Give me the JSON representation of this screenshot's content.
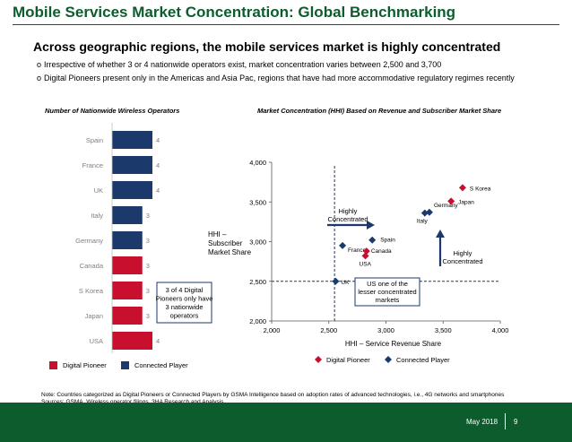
{
  "title": "Mobile Services Market Concentration: Global Benchmarking",
  "subtitle": "Across geographic regions, the mobile services market is highly concentrated",
  "bullets": [
    "Irrespective of whether 3 or 4 nationwide operators exist, market concentration varies between 2,500 and 3,700",
    "Digital Pioneers present only in the Americas and Asia Pac, regions that have had more accommodative regulatory regimes recently"
  ],
  "bullet_marker": "o",
  "colors": {
    "digital_pioneer": "#c8102e",
    "connected_player": "#1b3a6b",
    "brand_green": "#0d5c2e"
  },
  "chart_data": [
    {
      "type": "bar",
      "orientation": "horizontal",
      "title": "Number of Nationwide Wireless Operators",
      "categories": [
        "Spain",
        "France",
        "UK",
        "Italy",
        "Germany",
        "Canada",
        "S Korea",
        "Japan",
        "USA"
      ],
      "values": [
        4,
        4,
        4,
        3,
        3,
        3,
        3,
        3,
        4
      ],
      "groups": [
        "Connected Player",
        "Connected Player",
        "Connected Player",
        "Connected Player",
        "Connected Player",
        "Digital Pioneer",
        "Digital Pioneer",
        "Digital Pioneer",
        "Digital Pioneer"
      ],
      "xlim": [
        0,
        4
      ],
      "legend": [
        "Digital Pioneer",
        "Connected Player"
      ],
      "annotation": [
        "3 of 4 Digital",
        "Pioneers only have",
        "3 nationwide",
        "operators"
      ]
    },
    {
      "type": "scatter",
      "title": "Market Concentration (HHI) Based on Revenue and Subscriber Market Share",
      "xlabel": "HHI – Service Revenue Share",
      "ylabel": [
        "HHI –",
        "Subscriber",
        "Market Share"
      ],
      "xlim": [
        2000,
        4000
      ],
      "ylim": [
        2000,
        4000
      ],
      "xticks": [
        "2,000",
        "2,500",
        "3,000",
        "3,500",
        "4,000"
      ],
      "yticks": [
        "2,000",
        "2,500",
        "3,000",
        "3,500",
        "4,000"
      ],
      "reference_lines": {
        "x": 2550,
        "y": 2500
      },
      "points": [
        {
          "label": "S Korea",
          "x": 3670,
          "y": 3680,
          "group": "Digital Pioneer"
        },
        {
          "label": "Japan",
          "x": 3570,
          "y": 3510,
          "group": "Digital Pioneer"
        },
        {
          "label": "Germany",
          "x": 3380,
          "y": 3370,
          "group": "Connected Player"
        },
        {
          "label": "Italy",
          "x": 3340,
          "y": 3360,
          "group": "Connected Player"
        },
        {
          "label": "Spain",
          "x": 2880,
          "y": 3020,
          "group": "Connected Player"
        },
        {
          "label": "France",
          "x": 2620,
          "y": 2950,
          "group": "Connected Player"
        },
        {
          "label": "Canada",
          "x": 2830,
          "y": 2880,
          "group": "Digital Pioneer"
        },
        {
          "label": "USA",
          "x": 2820,
          "y": 2820,
          "group": "Digital Pioneer"
        },
        {
          "label": "UK",
          "x": 2560,
          "y": 2500,
          "group": "Connected Player"
        }
      ],
      "annotations": {
        "highly_concentrated_x": [
          "Highly",
          "Concentrated"
        ],
        "highly_concentrated_y": [
          "Highly",
          "Concentrated"
        ],
        "us_note": [
          "US one of the",
          "lesser concentrated",
          "markets"
        ]
      },
      "legend": [
        "Digital Pioneer",
        "Connected Player"
      ]
    }
  ],
  "legend_labels": {
    "digital_pioneer": "Digital Pioneer",
    "connected_player": "Connected Player"
  },
  "notes": [
    "Note: Countries categorized as Digital Pioneers or Connected Players by GSMA Intelligence based on adoption rates of advanced technologies, i.e., 4G networks and smartphones",
    "Sources: GSMA, Wireless operator filings, 3HA Research and Analysis"
  ],
  "footer": {
    "date": "May 2018",
    "page": "9"
  }
}
